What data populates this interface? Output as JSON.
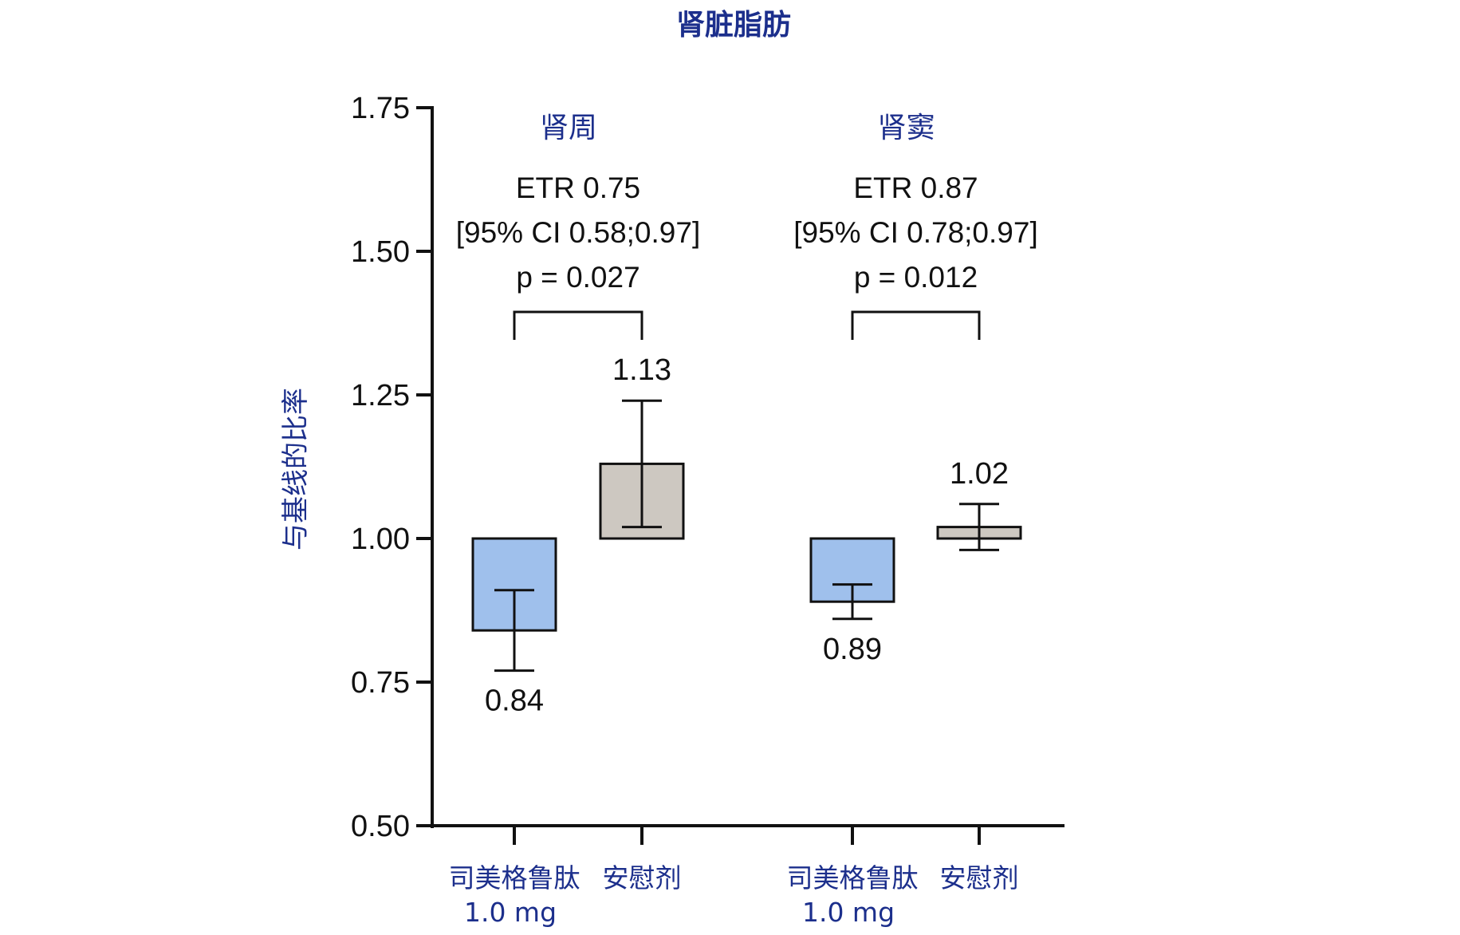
{
  "chart_data": {
    "type": "bar",
    "title": "肾脏脂肪",
    "ylabel": "与基线的比率",
    "ylim": [
      0.5,
      1.75
    ],
    "yticks": [
      "0.50",
      "0.75",
      "1.00",
      "1.25",
      "1.50",
      "1.75"
    ],
    "baseline": 1.0,
    "groups": [
      {
        "label": "肾周",
        "etr": "ETR 0.75",
        "ci": "[95% CI 0.58;0.97]",
        "p": "p = 0.027",
        "bars": [
          {
            "category": "司美格鲁肽",
            "category_sub": "1.0 mg",
            "value": 0.84,
            "value_label": "0.84",
            "err_low": 0.77,
            "err_high": 0.91,
            "color": "#9fc0ec"
          },
          {
            "category": "安慰剂",
            "category_sub": "",
            "value": 1.13,
            "value_label": "1.13",
            "err_low": 1.02,
            "err_high": 1.24,
            "color": "#cdc8c1"
          }
        ]
      },
      {
        "label": "肾窦",
        "etr": "ETR 0.87",
        "ci": "[95% CI 0.78;0.97]",
        "p": "p = 0.012",
        "bars": [
          {
            "category": "司美格鲁肽",
            "category_sub": "1.0 mg",
            "value": 0.89,
            "value_label": "0.89",
            "err_low": 0.86,
            "err_high": 0.92,
            "color": "#9fc0ec"
          },
          {
            "category": "安慰剂",
            "category_sub": "",
            "value": 1.02,
            "value_label": "1.02",
            "err_low": 0.98,
            "err_high": 1.06,
            "color": "#cdc8c1"
          }
        ]
      }
    ],
    "colors": {
      "title": "#1c2f8c",
      "axis": "#111111"
    }
  }
}
